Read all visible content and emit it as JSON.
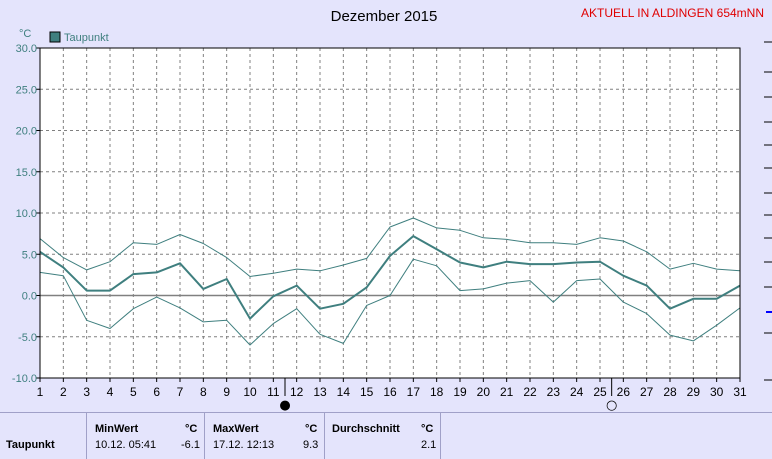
{
  "header": {
    "title": "Dezember 2015",
    "station_link": "AKTUELL IN ALDINGEN 654mNN"
  },
  "colors": {
    "background": "#e4e4fc",
    "plot_background": "#ffffff",
    "series": "#3f7f7f",
    "band": "#3f7f7f",
    "title_link": "#e00000",
    "axis_text": "#000000"
  },
  "chart_data": {
    "type": "line",
    "unit_label": "°C",
    "legend": [
      "Taupunkt"
    ],
    "x_ticks": [
      "1",
      "2",
      "3",
      "4",
      "5",
      "6",
      "7",
      "8",
      "9",
      "10",
      "11",
      "12",
      "13",
      "14",
      "15",
      "16",
      "17",
      "18",
      "19",
      "20",
      "21",
      "22",
      "23",
      "24",
      "25",
      "26",
      "27",
      "28",
      "29",
      "30",
      "31"
    ],
    "y_ticks": [
      "30.0",
      "25.0",
      "20.0",
      "15.0",
      "10.0",
      "5.0",
      "0.0",
      "-5.0",
      "-10.0"
    ],
    "xlim": [
      1,
      31
    ],
    "ylim": [
      -10,
      30
    ],
    "grid": true,
    "legend_position": "top-left",
    "series": [
      {
        "name": "Taupunkt",
        "role": "mean",
        "x": [
          1,
          2,
          3,
          4,
          5,
          6,
          7,
          8,
          9,
          10,
          11,
          12,
          13,
          14,
          15,
          16,
          17,
          18,
          19,
          20,
          21,
          22,
          23,
          24,
          25,
          26,
          27,
          28,
          29,
          30,
          31
        ],
        "values": [
          5.3,
          3.4,
          0.6,
          0.6,
          2.6,
          2.8,
          3.9,
          0.8,
          2.0,
          -2.8,
          -0.1,
          1.2,
          -1.6,
          -1.0,
          1.0,
          4.8,
          7.2,
          5.6,
          4.0,
          3.4,
          4.1,
          3.8,
          3.8,
          4.0,
          4.1,
          2.4,
          1.2,
          -1.6,
          -0.4,
          -0.4,
          1.2
        ]
      },
      {
        "name": "max",
        "role": "band-upper",
        "x": [
          1,
          2,
          3,
          4,
          5,
          6,
          7,
          8,
          9,
          10,
          11,
          12,
          13,
          14,
          15,
          16,
          17,
          18,
          19,
          20,
          21,
          22,
          23,
          24,
          25,
          26,
          27,
          28,
          29,
          30,
          31
        ],
        "values": [
          6.9,
          4.6,
          3.1,
          4.1,
          6.4,
          6.2,
          7.4,
          6.3,
          4.6,
          2.3,
          2.7,
          3.2,
          3.0,
          3.7,
          4.5,
          8.3,
          9.4,
          8.2,
          7.9,
          7.0,
          6.8,
          6.4,
          6.4,
          6.2,
          7.0,
          6.6,
          5.3,
          3.2,
          3.9,
          3.2,
          3.0
        ]
      },
      {
        "name": "min",
        "role": "band-lower",
        "x": [
          1,
          2,
          3,
          4,
          5,
          6,
          7,
          8,
          9,
          10,
          11,
          12,
          13,
          14,
          15,
          16,
          17,
          18,
          19,
          20,
          21,
          22,
          23,
          24,
          25,
          26,
          27,
          28,
          29,
          30,
          31
        ],
        "values": [
          2.8,
          2.4,
          -3.0,
          -4.0,
          -1.6,
          -0.2,
          -1.5,
          -3.2,
          -3.0,
          -6.0,
          -3.4,
          -1.6,
          -4.7,
          -5.8,
          -1.2,
          0.0,
          4.4,
          3.6,
          0.6,
          0.8,
          1.5,
          1.8,
          -0.8,
          1.8,
          2.0,
          -0.8,
          -2.2,
          -4.8,
          -5.5,
          -3.6,
          -1.5
        ]
      }
    ],
    "markers": [
      {
        "symbol": "●",
        "x": 11.5
      },
      {
        "symbol": "○",
        "x": 25.5
      }
    ]
  },
  "stats": {
    "row_label": "Taupunkt",
    "min_label": "MinWert",
    "max_label": "MaxWert",
    "avg_label": "Durchschnitt",
    "unit": "°C",
    "min_time": "10.12.  05:41",
    "min_value": "-6.1",
    "max_time": "17.12.  12:13",
    "max_value": "9.3",
    "avg_value": "2.1"
  }
}
